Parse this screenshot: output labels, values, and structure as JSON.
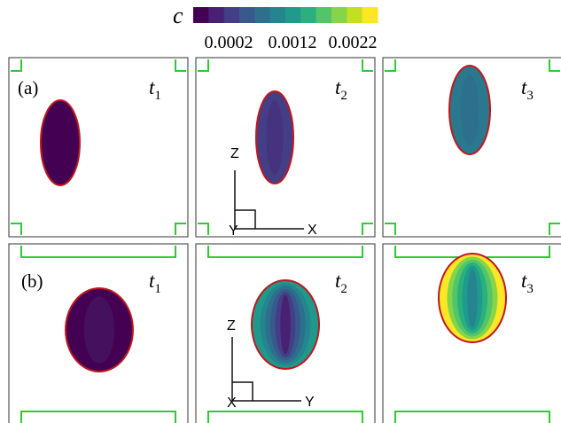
{
  "colorbar": {
    "label": "c",
    "tick_labels": [
      "0.0002",
      "0.0012",
      "0.0022"
    ]
  },
  "rows": [
    {
      "label": "(a)",
      "panels": [
        {
          "symbol": "t",
          "index": "1"
        },
        {
          "symbol": "t",
          "index": "2"
        },
        {
          "symbol": "t",
          "index": "3"
        }
      ],
      "axes": {
        "vertical": "Z",
        "horizontal": "X",
        "depth": "Y"
      }
    },
    {
      "label": "(b)",
      "panels": [
        {
          "symbol": "t",
          "index": "1"
        },
        {
          "symbol": "t",
          "index": "2"
        },
        {
          "symbol": "t",
          "index": "3"
        }
      ],
      "axes": {
        "vertical": "Z",
        "horizontal": "Y",
        "depth": "X"
      }
    }
  ]
}
